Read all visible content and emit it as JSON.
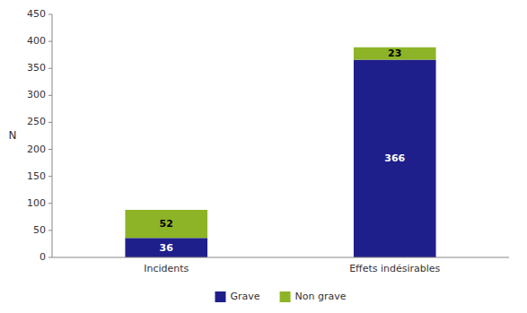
{
  "chart_data": {
    "type": "bar",
    "stacked": true,
    "categories": [
      "Incidents",
      "Effets indésirables"
    ],
    "series": [
      {
        "name": "Grave",
        "color": "#1F1F8C",
        "values": [
          36,
          366
        ]
      },
      {
        "name": "Non grave",
        "color": "#8DB427",
        "values": [
          52,
          23
        ]
      }
    ],
    "y_label": "N",
    "ylim": [
      0,
      450
    ],
    "yticks": [
      0,
      50,
      100,
      150,
      200,
      250,
      300,
      350,
      400,
      450
    ],
    "grid": false,
    "legend": "bottom",
    "data_labels": true
  }
}
